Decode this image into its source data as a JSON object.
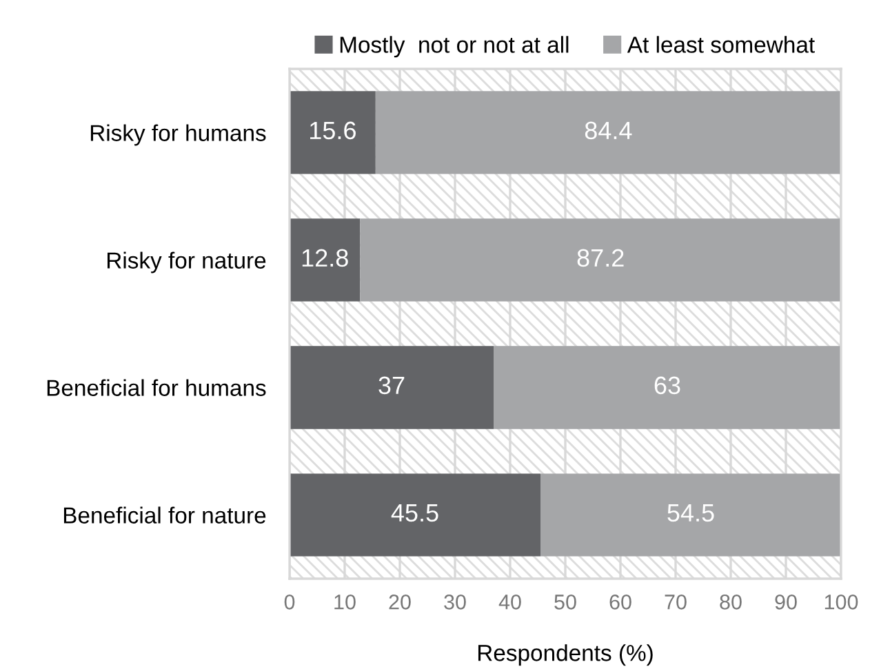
{
  "chart_data": {
    "type": "bar",
    "orientation": "horizontal",
    "stacked": true,
    "xlabel": "Respondents (%)",
    "categories": [
      "Risky for humans",
      "Risky for nature",
      "Beneficial for humans",
      "Beneficial for nature"
    ],
    "series": [
      {
        "name": "Mostly  not or not at all",
        "color": "#636467",
        "values": [
          15.6,
          12.8,
          37,
          45.5
        ]
      },
      {
        "name": "At least somewhat",
        "color": "#a5a6a8",
        "values": [
          84.4,
          87.2,
          63,
          54.5
        ]
      }
    ],
    "xlim": [
      0,
      100
    ],
    "xticks": [
      0,
      10,
      20,
      30,
      40,
      50,
      60,
      70,
      80,
      90,
      100
    ],
    "grid": "x",
    "legend": "top",
    "data_labels": true
  }
}
